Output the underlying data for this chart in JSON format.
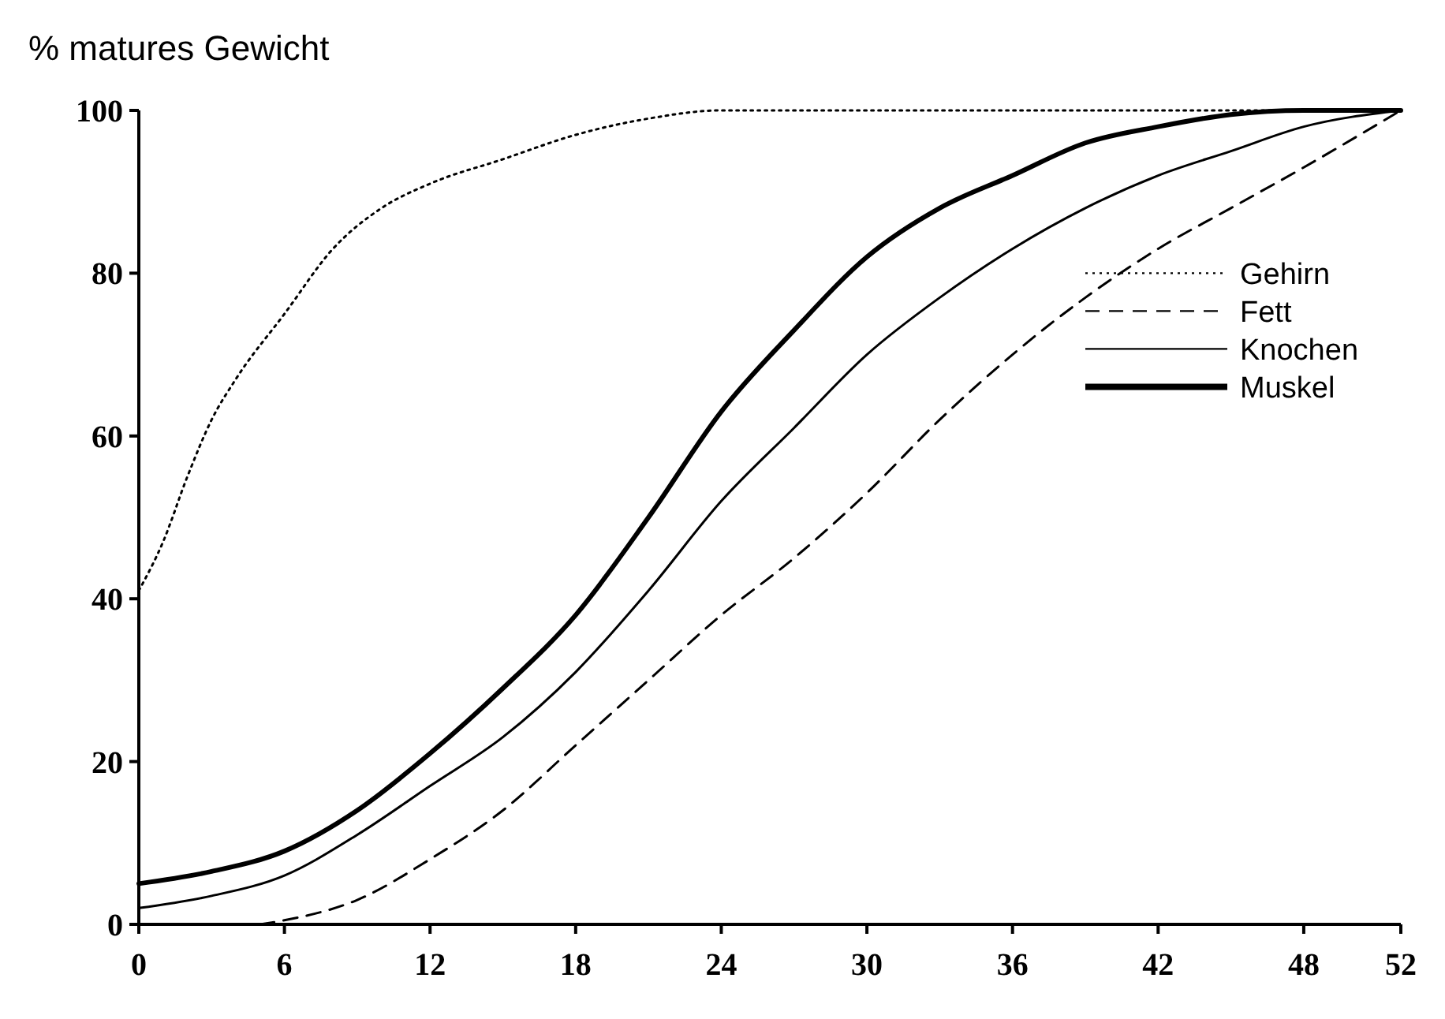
{
  "chart_data": {
    "type": "line",
    "ylabel": "% matures Gewicht",
    "xlim": [
      0,
      52
    ],
    "ylim": [
      0,
      100
    ],
    "xticks": [
      0,
      6,
      12,
      18,
      24,
      30,
      36,
      42,
      48,
      52
    ],
    "yticks": [
      0,
      20,
      40,
      60,
      80,
      100
    ],
    "grid": false,
    "legend": "right",
    "series": [
      {
        "name": "Gehirn",
        "color": "#000000",
        "line_style": "dotted",
        "x": [
          0,
          1,
          2,
          3,
          4,
          6,
          8,
          10,
          12,
          15,
          18,
          21,
          24,
          27,
          30,
          36,
          42,
          48,
          52
        ],
        "values": [
          41,
          47,
          55,
          62,
          67,
          75,
          83,
          88,
          91,
          94,
          97,
          99,
          100,
          100,
          100,
          100,
          100,
          100,
          100
        ]
      },
      {
        "name": "Fett",
        "color": "#000000",
        "line_style": "dashed",
        "x": [
          5,
          6,
          9,
          12,
          15,
          18,
          21,
          24,
          27,
          30,
          33,
          36,
          39,
          42,
          45,
          48,
          52
        ],
        "values": [
          0,
          0.5,
          3,
          8,
          14,
          22,
          30,
          38,
          45,
          53,
          62,
          70,
          77,
          83,
          88,
          93,
          100
        ]
      },
      {
        "name": "Knochen",
        "color": "#000000",
        "line_style": "solid",
        "x": [
          0,
          3,
          6,
          9,
          12,
          15,
          18,
          21,
          24,
          27,
          30,
          33,
          36,
          39,
          42,
          45,
          48,
          52
        ],
        "values": [
          2,
          3.5,
          6,
          11,
          17,
          23,
          31,
          41,
          52,
          61,
          70,
          77,
          83,
          88,
          92,
          95,
          98,
          100
        ]
      },
      {
        "name": "Muskel",
        "color": "#000000",
        "line_style": "solid",
        "x": [
          0,
          3,
          6,
          9,
          12,
          15,
          18,
          21,
          24,
          27,
          30,
          33,
          36,
          39,
          42,
          45,
          48,
          52
        ],
        "values": [
          5,
          6.5,
          9,
          14,
          21,
          29,
          38,
          50,
          63,
          73,
          82,
          88,
          92,
          96,
          98,
          99.5,
          100,
          100
        ]
      }
    ]
  }
}
